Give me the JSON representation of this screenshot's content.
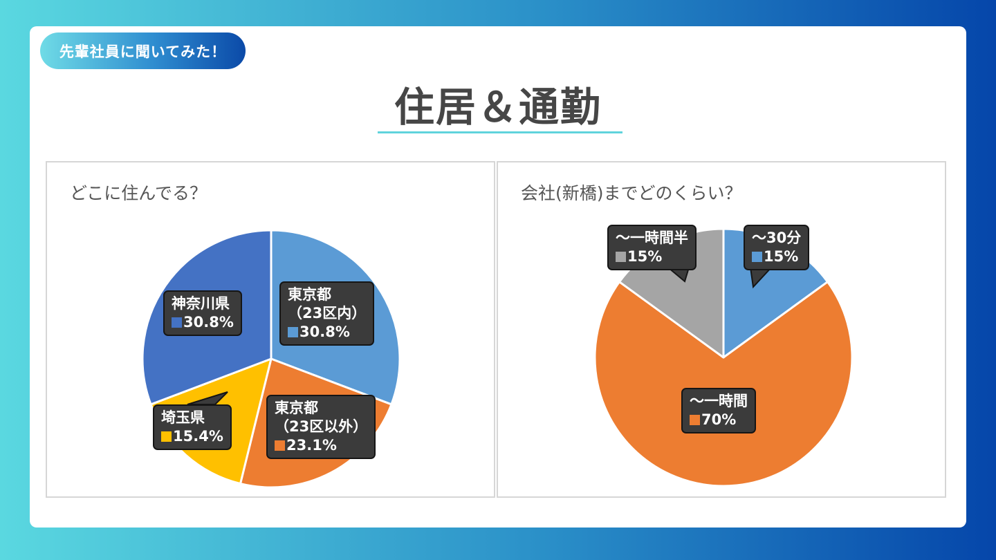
{
  "badge": "先輩社員に聞いてみた！",
  "page_title": "住居＆通勤",
  "colors": {
    "blue_light": "#5b9bd5",
    "blue_dark": "#4472c4",
    "orange": "#ed7d31",
    "yellow": "#ffc000",
    "gray": "#a5a5a5",
    "callout_bg": "#3b3b3b"
  },
  "chart_data": [
    {
      "type": "pie",
      "title": "どこに住んでる？",
      "slices": [
        {
          "label_lines": [
            "東京都",
            "（23区内）"
          ],
          "value": 30.8,
          "value_label": "30.8%",
          "color": "#5b9bd5"
        },
        {
          "label_lines": [
            "東京都",
            "（23区以外）"
          ],
          "value": 23.1,
          "value_label": "23.1%",
          "color": "#ed7d31"
        },
        {
          "label_lines": [
            "埼玉県"
          ],
          "value": 15.4,
          "value_label": "15.4%",
          "color": "#ffc000"
        },
        {
          "label_lines": [
            "神奈川県"
          ],
          "value": 30.8,
          "value_label": "30.8%",
          "color": "#4472c4"
        }
      ]
    },
    {
      "type": "pie",
      "title": "会社(新橋)までどのくらい？",
      "slices": [
        {
          "label_lines": [
            "～30分"
          ],
          "value": 15,
          "value_label": "15%",
          "color": "#5b9bd5"
        },
        {
          "label_lines": [
            "～一時間"
          ],
          "value": 70,
          "value_label": "70%",
          "color": "#ed7d31"
        },
        {
          "label_lines": [
            "～一時間半"
          ],
          "value": 15,
          "value_label": "15%",
          "color": "#a5a5a5"
        }
      ]
    }
  ]
}
